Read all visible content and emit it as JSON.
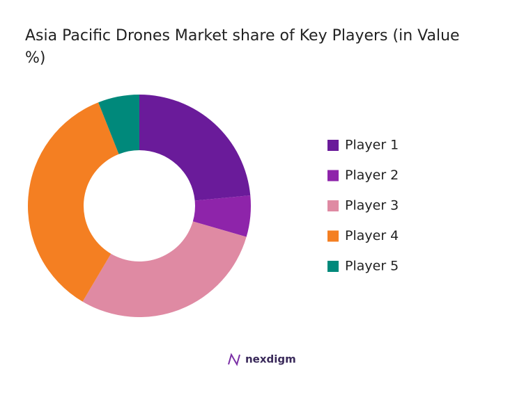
{
  "chart_data": {
    "type": "pie",
    "donut": true,
    "title": "Asia Pacific Drones Market share of Key Players (in Value %)",
    "categories": [
      "Player 1",
      "Player 2",
      "Player 3",
      "Player 4",
      "Player 5"
    ],
    "values": [
      23.5,
      6,
      29,
      35.5,
      6
    ],
    "colors": [
      "#6a1b9a",
      "#8e24aa",
      "#df8aa3",
      "#f47f22",
      "#00897b"
    ],
    "legend": "right"
  },
  "logo": "nexdigm"
}
